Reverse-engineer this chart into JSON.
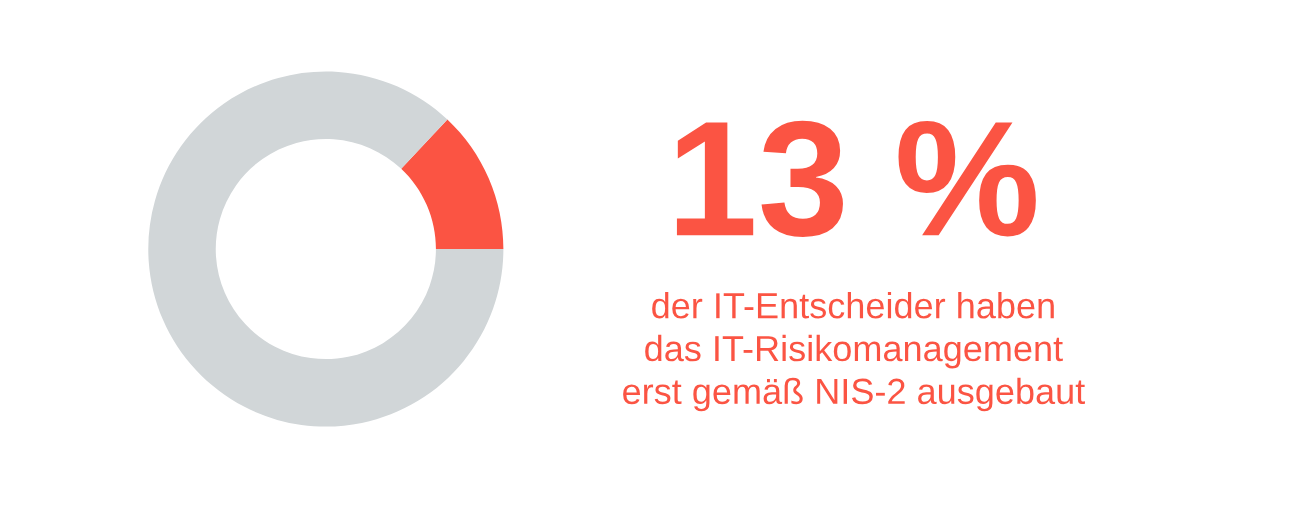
{
  "chart_data": {
    "type": "donut",
    "categories": [
      null,
      null
    ],
    "values": [
      13,
      87
    ],
    "colors": [
      "#fb5443",
      "#d1d6d8"
    ],
    "value_labels": [
      "13 %",
      null
    ],
    "annotations": [
      "der IT-Entscheider haben\ndas IT-Risikomanagement\nerst gemäß NIS-2 ausgebaut"
    ],
    "legend": false
  }
}
